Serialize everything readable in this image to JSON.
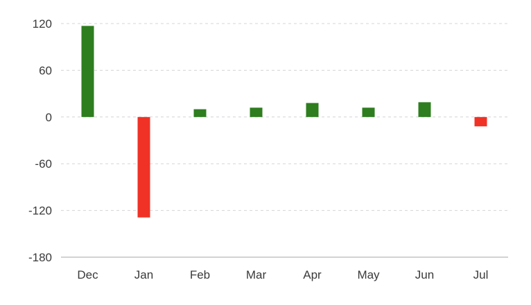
{
  "chart_data": {
    "type": "bar",
    "categories": [
      "Dec",
      "Jan",
      "Feb",
      "Mar",
      "Apr",
      "May",
      "Jun",
      "Jul"
    ],
    "values": [
      117,
      -129,
      10,
      12,
      18,
      12,
      19,
      -12
    ],
    "title": "",
    "xlabel": "",
    "ylabel": "",
    "ylim": [
      -180,
      120
    ],
    "yticks": [
      120,
      60,
      0,
      -60,
      -120,
      -180
    ],
    "ytick_labels": [
      "120",
      "60",
      "0",
      "-60",
      "-120",
      "-180"
    ],
    "grid": true,
    "colors": {
      "positive": "#2e7d1f",
      "negative": "#f03226"
    }
  }
}
